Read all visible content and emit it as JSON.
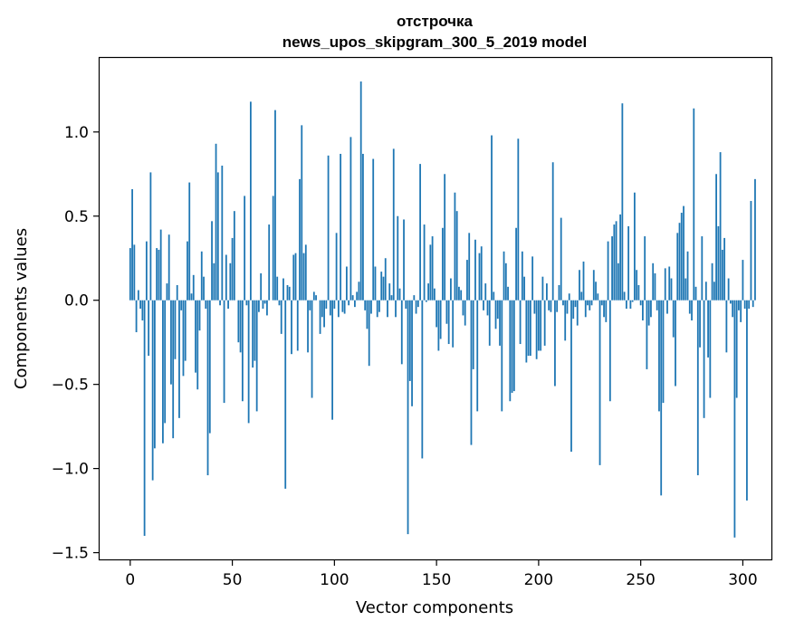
{
  "chart_data": {
    "type": "bar",
    "title_line1": "отстрочка",
    "title_line2": "news_upos_skipgram_300_5_2019 model",
    "xlabel": "Vector components",
    "ylabel": "Components values",
    "xlim": [
      -15,
      314
    ],
    "ylim": [
      -1.54,
      1.44
    ],
    "xticks": [
      0,
      50,
      100,
      150,
      200,
      250,
      300
    ],
    "xtick_labels": [
      "0",
      "50",
      "100",
      "150",
      "200",
      "250",
      "300"
    ],
    "yticks": [
      -1.5,
      -1.0,
      -0.5,
      0.0,
      0.5,
      1.0
    ],
    "ytick_labels": [
      "−1.5",
      "−1.0",
      "−0.5",
      "0.0",
      "0.5",
      "1.0"
    ],
    "bar_color": "#1f77b4",
    "grid": false,
    "legend": "none",
    "x_start": 0,
    "values": [
      0.31,
      0.66,
      0.33,
      -0.19,
      0.06,
      -0.05,
      -0.12,
      -1.4,
      0.35,
      -0.33,
      0.76,
      -1.07,
      -0.88,
      0.31,
      0.3,
      0.42,
      -0.85,
      -0.73,
      0.1,
      0.39,
      -0.5,
      -0.82,
      -0.35,
      0.09,
      -0.7,
      -0.06,
      -0.45,
      -0.36,
      0.35,
      0.7,
      0.04,
      0.15,
      -0.43,
      -0.53,
      -0.18,
      0.29,
      0.14,
      -0.05,
      -1.04,
      -0.79,
      0.47,
      0.22,
      0.93,
      0.76,
      -0.03,
      0.8,
      -0.61,
      0.27,
      -0.05,
      0.22,
      0.37,
      0.53,
      0.0,
      -0.25,
      -0.31,
      -0.6,
      0.62,
      -0.03,
      -0.73,
      1.18,
      -0.4,
      -0.36,
      -0.66,
      -0.07,
      0.16,
      -0.05,
      -0.02,
      -0.09,
      0.45,
      0.0,
      0.62,
      1.13,
      0.14,
      -0.03,
      -0.2,
      0.13,
      -1.12,
      0.09,
      0.08,
      -0.32,
      0.27,
      0.28,
      -0.3,
      0.72,
      1.04,
      0.28,
      0.33,
      -0.31,
      -0.06,
      -0.58,
      0.05,
      0.03,
      0.0,
      -0.2,
      -0.1,
      -0.16,
      -0.05,
      0.86,
      -0.09,
      -0.71,
      -0.05,
      0.4,
      -0.1,
      0.87,
      -0.07,
      -0.08,
      0.2,
      -0.03,
      0.97,
      0.03,
      -0.04,
      0.05,
      0.11,
      1.3,
      0.87,
      -0.06,
      -0.17,
      -0.39,
      -0.08,
      0.84,
      0.2,
      -0.1,
      -0.07,
      0.17,
      0.14,
      0.25,
      -0.1,
      0.1,
      0.03,
      0.9,
      -0.1,
      0.5,
      0.07,
      -0.38,
      0.48,
      -0.05,
      -1.39,
      -0.48,
      -0.63,
      0.03,
      -0.08,
      -0.04,
      0.81,
      -0.94,
      0.45,
      -0.01,
      0.1,
      0.33,
      0.38,
      0.07,
      -0.16,
      -0.3,
      -0.23,
      0.43,
      0.75,
      -0.14,
      -0.26,
      0.13,
      -0.28,
      0.64,
      0.53,
      0.08,
      0.06,
      -0.09,
      -0.15,
      0.24,
      0.4,
      -0.86,
      -0.41,
      0.36,
      -0.66,
      0.28,
      0.32,
      -0.06,
      0.1,
      -0.09,
      -0.27,
      0.98,
      0.05,
      -0.17,
      -0.11,
      -0.27,
      -0.66,
      0.29,
      0.22,
      0.08,
      -0.6,
      -0.55,
      -0.54,
      0.43,
      0.96,
      -0.26,
      0.29,
      0.14,
      -0.37,
      -0.33,
      -0.33,
      0.26,
      -0.08,
      -0.35,
      -0.3,
      -0.3,
      0.14,
      -0.27,
      0.1,
      -0.06,
      -0.07,
      0.82,
      -0.51,
      -0.07,
      0.09,
      0.49,
      -0.03,
      -0.24,
      -0.08,
      0.04,
      -0.9,
      -0.11,
      -0.04,
      -0.15,
      0.18,
      0.05,
      0.23,
      -0.1,
      -0.03,
      -0.06,
      -0.03,
      0.18,
      0.11,
      0.04,
      -0.98,
      -0.03,
      -0.1,
      -0.13,
      0.35,
      -0.6,
      0.38,
      0.45,
      0.47,
      0.22,
      0.51,
      1.17,
      0.05,
      -0.05,
      0.44,
      -0.05,
      -0.01,
      0.64,
      0.18,
      0.09,
      -0.03,
      -0.12,
      0.38,
      -0.41,
      -0.15,
      -0.1,
      0.22,
      0.16,
      -0.06,
      -0.66,
      -1.16,
      -0.61,
      0.19,
      -0.08,
      0.2,
      0.13,
      -0.22,
      -0.51,
      0.4,
      0.46,
      0.52,
      0.56,
      0.13,
      0.29,
      -0.08,
      -0.12,
      1.14,
      0.08,
      -1.04,
      -0.28,
      0.38,
      -0.7,
      0.11,
      -0.34,
      -0.58,
      0.22,
      0.11,
      0.75,
      0.44,
      0.88,
      0.3,
      0.37,
      -0.31,
      0.13,
      -0.02,
      -0.1,
      -1.41,
      -0.58,
      -0.06,
      -0.13,
      0.24,
      -0.05,
      -1.19,
      -0.05,
      0.59,
      -0.04,
      0.72
    ]
  }
}
